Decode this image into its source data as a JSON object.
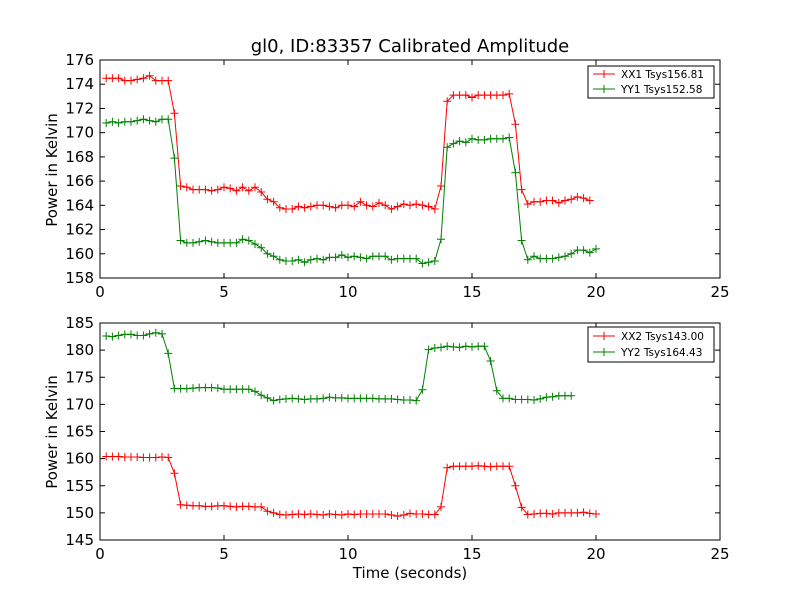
{
  "chart_data": [
    {
      "type": "line",
      "title": "gl0, ID:83357 Calibrated Amplitude",
      "xlabel": "",
      "ylabel": "Power in Kelvin",
      "xlim": [
        0,
        25
      ],
      "ylim": [
        158,
        176
      ],
      "xticks": [
        "0",
        "5",
        "10",
        "15",
        "20",
        "25"
      ],
      "yticks": [
        "158",
        "160",
        "162",
        "164",
        "166",
        "168",
        "170",
        "172",
        "174",
        "176"
      ],
      "grid": false,
      "legend": "top-right",
      "marker": "+",
      "x": [
        0.25,
        0.5,
        0.75,
        1.0,
        1.25,
        1.5,
        1.75,
        2.0,
        2.25,
        2.5,
        2.75,
        3.0,
        3.25,
        3.5,
        3.75,
        4.0,
        4.25,
        4.5,
        4.75,
        5.0,
        5.25,
        5.5,
        5.75,
        6.0,
        6.25,
        6.5,
        6.75,
        7.0,
        7.25,
        7.5,
        7.75,
        8.0,
        8.25,
        8.5,
        8.75,
        9.0,
        9.25,
        9.5,
        9.75,
        10.0,
        10.25,
        10.5,
        10.75,
        11.0,
        11.25,
        11.5,
        11.75,
        12.0,
        12.25,
        12.5,
        12.75,
        13.0,
        13.25,
        13.5,
        13.75,
        14.0,
        14.25,
        14.5,
        14.75,
        15.0,
        15.25,
        15.5,
        15.75,
        16.0,
        16.25,
        16.5,
        16.75,
        17.0,
        17.25,
        17.5,
        17.75,
        18.0,
        18.25,
        18.5,
        18.75,
        19.0,
        19.25,
        19.5,
        19.75,
        20.0,
        20.25
      ],
      "series": [
        {
          "name": "XX1 Tsys156.81",
          "color": "#ff0000",
          "values": [
            174.5,
            174.5,
            174.5,
            174.3,
            174.3,
            174.4,
            174.5,
            174.7,
            174.3,
            174.3,
            174.3,
            171.6,
            165.6,
            165.5,
            165.3,
            165.3,
            165.3,
            165.2,
            165.3,
            165.5,
            165.4,
            165.2,
            165.5,
            165.2,
            165.5,
            165.1,
            164.5,
            164.3,
            163.8,
            163.7,
            163.7,
            163.9,
            163.8,
            163.9,
            164.0,
            164.0,
            163.9,
            163.8,
            164.0,
            164.0,
            163.9,
            164.3,
            164.0,
            163.9,
            164.2,
            164.0,
            163.7,
            163.9,
            164.1,
            164.0,
            164.1,
            164.0,
            163.9,
            163.7,
            165.6,
            172.6,
            173.1,
            173.1,
            173.1,
            172.9,
            173.1,
            173.1,
            173.1,
            173.1,
            173.1,
            173.2,
            170.7,
            165.3,
            164.1,
            164.3,
            164.3,
            164.4,
            164.4,
            164.2,
            164.4,
            164.5,
            164.7,
            164.6,
            164.4,
            null,
            null
          ]
        },
        {
          "name": "YY1 Tsys152.58",
          "color": "#008000",
          "values": [
            170.8,
            170.9,
            170.8,
            170.9,
            170.9,
            171.0,
            171.1,
            171.0,
            170.9,
            171.1,
            171.1,
            167.9,
            161.1,
            160.9,
            160.9,
            161.0,
            161.1,
            161.0,
            160.9,
            160.9,
            160.9,
            160.9,
            161.2,
            161.1,
            160.8,
            160.5,
            160.0,
            159.8,
            159.5,
            159.4,
            159.4,
            159.5,
            159.3,
            159.5,
            159.6,
            159.5,
            159.7,
            159.7,
            159.9,
            159.7,
            159.8,
            159.7,
            159.6,
            159.8,
            159.8,
            159.8,
            159.5,
            159.6,
            159.6,
            159.6,
            159.6,
            159.2,
            159.3,
            159.4,
            161.2,
            168.8,
            169.1,
            169.3,
            169.2,
            169.5,
            169.4,
            169.4,
            169.5,
            169.5,
            169.5,
            169.6,
            166.7,
            161.1,
            159.5,
            159.8,
            159.6,
            159.6,
            159.6,
            159.7,
            159.8,
            160.0,
            160.3,
            160.3,
            160.1,
            160.4,
            null
          ]
        }
      ]
    },
    {
      "type": "line",
      "title": "",
      "xlabel": "Time (seconds)",
      "ylabel": "Power in Kelvin",
      "xlim": [
        0,
        25
      ],
      "ylim": [
        145,
        185
      ],
      "xticks": [
        "0",
        "5",
        "10",
        "15",
        "20",
        "25"
      ],
      "yticks": [
        "145",
        "150",
        "155",
        "160",
        "165",
        "170",
        "175",
        "180",
        "185"
      ],
      "grid": false,
      "legend": "top-right",
      "marker": "+",
      "x": [
        0.25,
        0.5,
        0.75,
        1.0,
        1.25,
        1.5,
        1.75,
        2.0,
        2.25,
        2.5,
        2.75,
        3.0,
        3.25,
        3.5,
        3.75,
        4.0,
        4.25,
        4.5,
        4.75,
        5.0,
        5.25,
        5.5,
        5.75,
        6.0,
        6.25,
        6.5,
        6.75,
        7.0,
        7.25,
        7.5,
        7.75,
        8.0,
        8.25,
        8.5,
        8.75,
        9.0,
        9.25,
        9.5,
        9.75,
        10.0,
        10.25,
        10.5,
        10.75,
        11.0,
        11.25,
        11.5,
        11.75,
        12.0,
        12.25,
        12.5,
        12.75,
        13.0,
        13.25,
        13.5,
        13.75,
        14.0,
        14.25,
        14.5,
        14.75,
        15.0,
        15.25,
        15.5,
        15.75,
        16.0,
        16.25,
        16.5,
        16.75,
        17.0,
        17.25,
        17.5,
        17.75,
        18.0,
        18.25,
        18.5,
        18.75,
        19.0,
        19.25,
        19.5,
        19.75,
        20.0,
        20.25
      ],
      "series": [
        {
          "name": "XX2 Tsys143.00",
          "color": "#ff0000",
          "values": [
            160.4,
            160.4,
            160.4,
            160.3,
            160.3,
            160.3,
            160.2,
            160.2,
            160.2,
            160.3,
            160.2,
            157.3,
            151.5,
            151.4,
            151.3,
            151.3,
            151.2,
            151.2,
            151.3,
            151.3,
            151.2,
            151.1,
            151.2,
            151.2,
            151.1,
            151.1,
            150.3,
            150.0,
            149.7,
            149.6,
            149.7,
            149.8,
            149.7,
            149.8,
            149.7,
            149.6,
            149.8,
            149.7,
            149.6,
            149.8,
            149.7,
            149.8,
            149.8,
            149.8,
            149.8,
            149.8,
            149.6,
            149.4,
            149.6,
            149.9,
            149.8,
            149.8,
            149.7,
            149.7,
            151.1,
            158.3,
            158.6,
            158.6,
            158.6,
            158.6,
            158.7,
            158.6,
            158.5,
            158.6,
            158.6,
            158.6,
            155.0,
            151.0,
            149.7,
            149.8,
            149.9,
            149.9,
            149.8,
            150.0,
            150.0,
            150.0,
            150.0,
            150.1,
            149.9,
            149.8,
            null
          ]
        },
        {
          "name": "YY2 Tsys164.43",
          "color": "#008000",
          "values": [
            182.6,
            182.5,
            182.7,
            182.9,
            182.9,
            182.7,
            182.7,
            183.0,
            183.2,
            183.0,
            179.4,
            172.9,
            172.9,
            172.9,
            173.0,
            173.1,
            173.1,
            173.1,
            173.0,
            172.8,
            172.8,
            172.8,
            172.8,
            172.8,
            172.4,
            171.7,
            171.2,
            170.7,
            170.9,
            171.0,
            171.1,
            171.0,
            170.9,
            171.0,
            171.0,
            171.1,
            171.3,
            171.2,
            171.2,
            171.1,
            171.1,
            171.1,
            171.1,
            171.1,
            171.0,
            171.0,
            171.0,
            170.9,
            170.8,
            170.8,
            170.7,
            172.7,
            180.1,
            180.4,
            180.5,
            180.7,
            180.6,
            180.5,
            180.7,
            180.6,
            180.7,
            180.7,
            178.0,
            172.5,
            171.1,
            171.1,
            170.9,
            170.9,
            170.9,
            170.8,
            171.0,
            171.3,
            171.4,
            171.6,
            171.6,
            171.6,
            null,
            null,
            null,
            null,
            null
          ]
        }
      ]
    }
  ]
}
